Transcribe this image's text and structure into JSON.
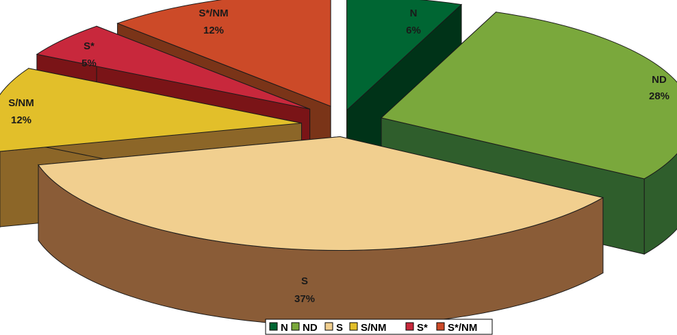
{
  "chart_data": {
    "type": "pie",
    "style": "3d-exploded",
    "title": "",
    "legend_position": "bottom",
    "slices": [
      {
        "name": "N",
        "value": 6,
        "label": "6%",
        "color": "#006633",
        "side_color": "#003318"
      },
      {
        "name": "ND",
        "value": 28,
        "label": "28%",
        "color": "#7aa83c",
        "side_color": "#2f5e2c"
      },
      {
        "name": "S",
        "value": 37,
        "label": "37%",
        "color": "#f1cf8f",
        "side_color": "#8a5c37"
      },
      {
        "name": "S/NM",
        "value": 12,
        "label": "12%",
        "color": "#e2bf2a",
        "side_color": "#8c6628"
      },
      {
        "name": "S*",
        "value": 5,
        "label": "5%",
        "color": "#c8283c",
        "side_color": "#7a1417"
      },
      {
        "name": "S*/NM",
        "value": 12,
        "label": "12%",
        "color": "#cc4a28",
        "side_color": "#7a3418"
      }
    ]
  }
}
